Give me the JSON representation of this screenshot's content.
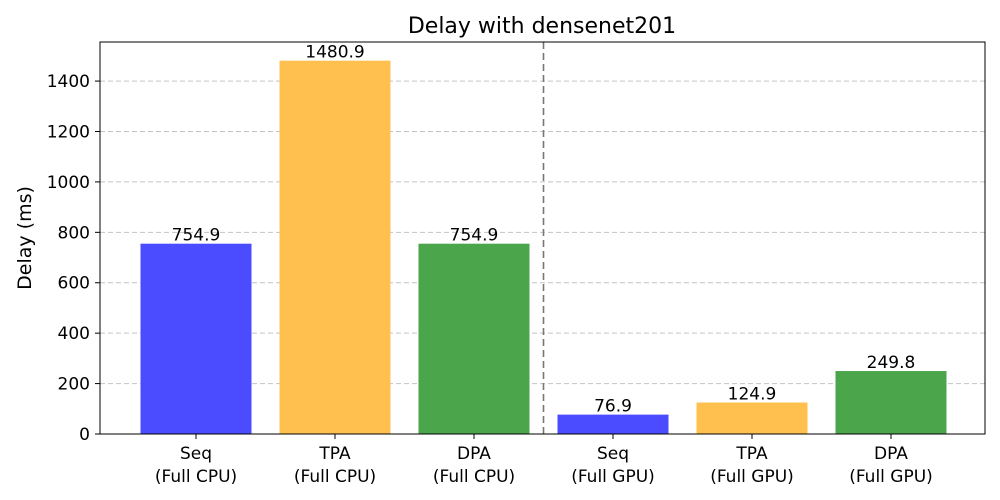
{
  "chart_data": {
    "type": "bar",
    "title": "Delay with densenet201",
    "xlabel": "",
    "ylabel": "Delay (ms)",
    "ylim": [
      0,
      1555
    ],
    "yticks": [
      0,
      200,
      400,
      600,
      800,
      1000,
      1200,
      1400
    ],
    "grid": "y-dashed",
    "categories": [
      [
        "Seq",
        "(Full CPU)"
      ],
      [
        "TPA",
        "(Full CPU)"
      ],
      [
        "DPA",
        "(Full CPU)"
      ],
      [
        "Seq",
        "(Full GPU)"
      ],
      [
        "TPA",
        "(Full GPU)"
      ],
      [
        "DPA",
        "(Full GPU)"
      ]
    ],
    "values": [
      754.9,
      1480.9,
      754.9,
      76.9,
      124.9,
      249.8
    ],
    "value_labels": [
      "754.9",
      "1480.9",
      "754.9",
      "76.9",
      "124.9",
      "249.8"
    ],
    "colors": [
      "#4b4bff",
      "#ffc04f",
      "#4ba64b",
      "#4b4bff",
      "#ffc04f",
      "#4ba64b"
    ],
    "divider_after_index": 2
  }
}
